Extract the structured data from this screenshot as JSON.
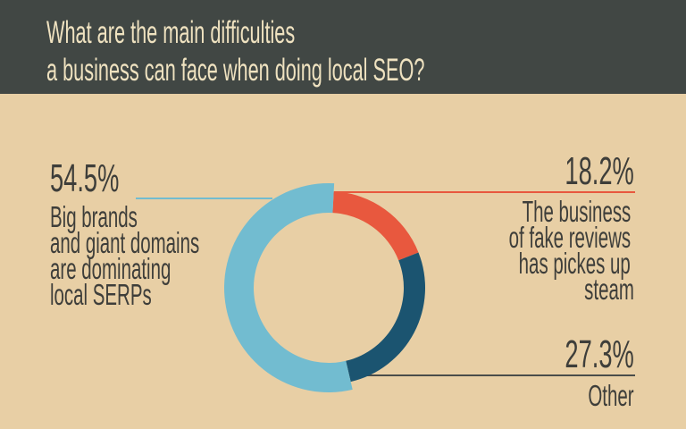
{
  "header": {
    "title_line1": "What are the main difficulties",
    "title_line2": "a business can face when doing local SEO?"
  },
  "chart_data": {
    "type": "pie",
    "donut": true,
    "title": "What are the main difficulties a business can face when doing local SEO?",
    "slices": [
      {
        "label": "The business of fake reviews has pickes up steam",
        "value": 18.2,
        "value_label": "18.2%",
        "color": "#e8583e",
        "label_lines": [
          "The business",
          "of fake reviews",
          "has pickes up",
          "steam"
        ]
      },
      {
        "label": "Other",
        "value": 27.3,
        "value_label": "27.3%",
        "color": "#1b5470",
        "label_lines": [
          "Other"
        ]
      },
      {
        "label": "Big brands and giant domains are dominating local SERPs",
        "value": 54.5,
        "value_label": "54.5%",
        "color": "#72bcd0",
        "label_lines": [
          "Big brands",
          "and giant domains",
          "are dominating",
          "local SERPs"
        ]
      }
    ]
  },
  "colors": {
    "background": "#e8cfa5",
    "header": "#414744",
    "title_text": "#efe2c0",
    "text": "#3e3e3a"
  }
}
